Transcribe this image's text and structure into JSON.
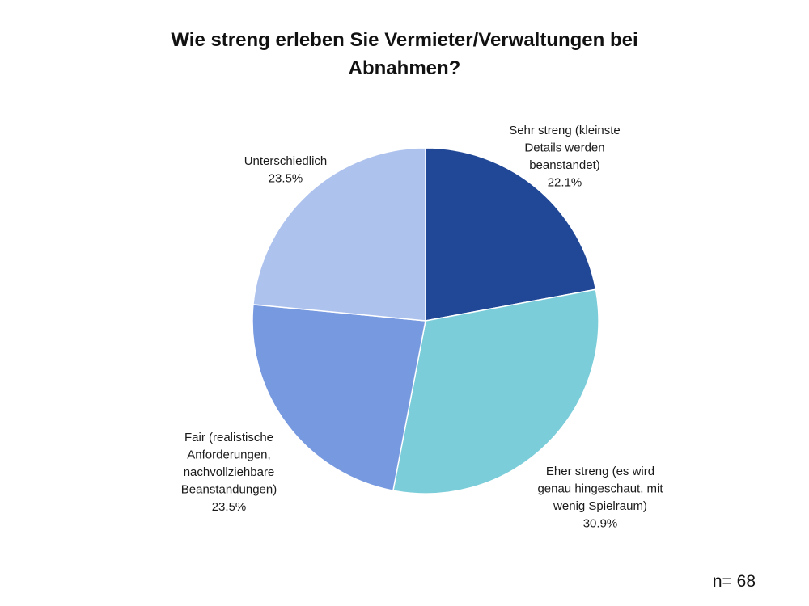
{
  "chart_data": {
    "type": "pie",
    "title": "Wie streng erleben Sie Vermieter/Verwaltungen bei Abnahmen?",
    "title_lines": [
      "Wie streng erleben Sie Vermieter/Verwaltungen bei",
      "Abnahmen?"
    ],
    "note": "n= 68",
    "start": "12 o'clock, clockwise",
    "slices": [
      {
        "label": "Sehr streng (kleinste Details werden beanstandet)",
        "label_lines": [
          "Sehr streng (kleinste",
          "Details werden",
          "beanstandet)"
        ],
        "value": 22.1,
        "value_label": "22.1%",
        "color": "#214897"
      },
      {
        "label": "Eher streng (es wird genau hingeschaut, mit wenig Spielraum)",
        "label_lines": [
          "Eher streng (es wird",
          "genau hingeschaut, mit",
          "wenig Spielraum)"
        ],
        "value": 30.9,
        "value_label": "30.9%",
        "color": "#7bcdd9"
      },
      {
        "label": "Fair (realistische Anforderungen, nachvollziehbare Beanstandungen)",
        "label_lines": [
          "Fair (realistische",
          "Anforderungen,",
          "nachvollziehbare",
          "Beanstandungen)"
        ],
        "value": 23.5,
        "value_label": "23.5%",
        "color": "#7799e0"
      },
      {
        "label": "Unterschiedlich",
        "label_lines": [
          "Unterschiedlich"
        ],
        "value": 23.5,
        "value_label": "23.5%",
        "color": "#aec2ee"
      }
    ]
  }
}
